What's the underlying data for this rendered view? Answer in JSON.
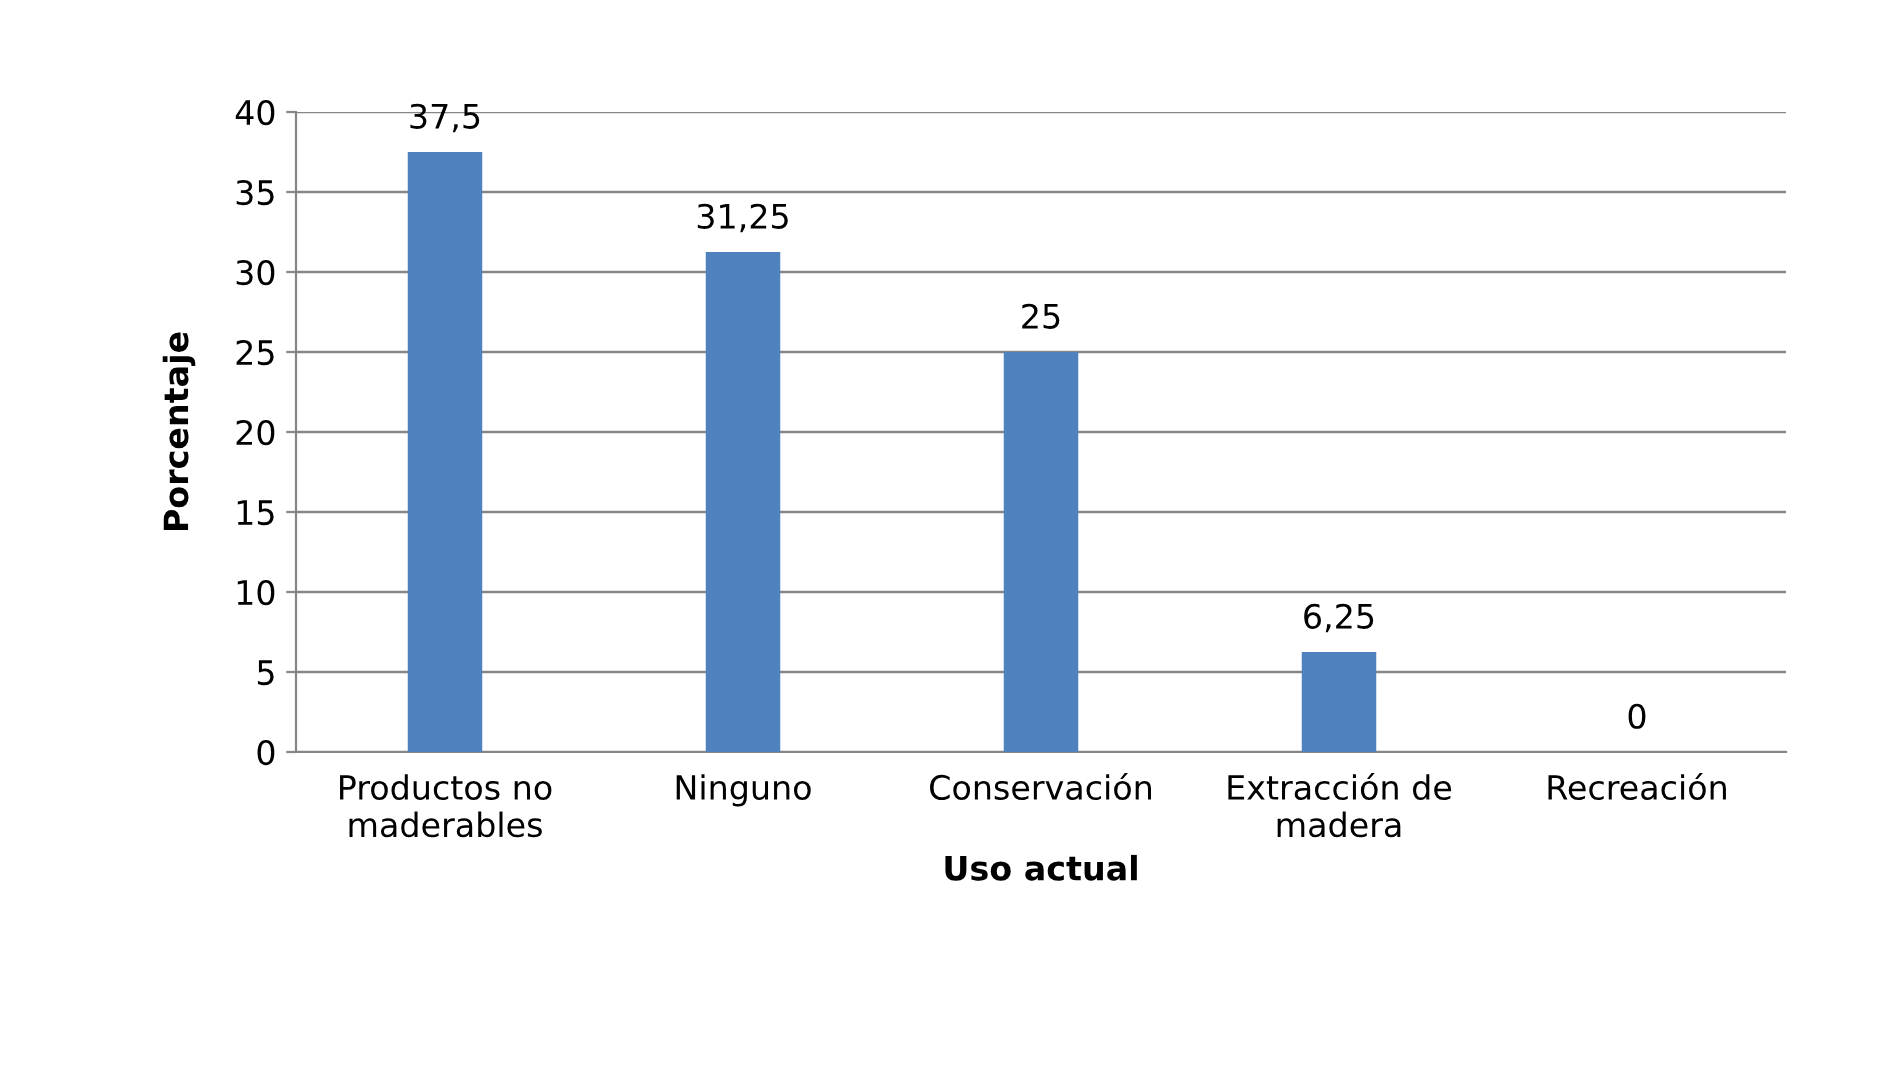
{
  "chart_data": {
    "type": "bar",
    "xlabel": "Uso actual",
    "ylabel": "Porcentaje",
    "categories": [
      "Productos no\nmaderables",
      "Ninguno",
      "Conservación",
      "Extracción de\nmadera",
      "Recreación"
    ],
    "values": [
      37.5,
      31.25,
      25,
      6.25,
      0
    ],
    "value_labels": [
      "37,5",
      "31,25",
      "25",
      "6,25",
      "0"
    ],
    "color": "#4f81bd",
    "ylim": [
      0,
      40
    ],
    "yticks": [
      0,
      5,
      10,
      15,
      20,
      25,
      30,
      35,
      40
    ],
    "grid": "y",
    "legend": false
  }
}
